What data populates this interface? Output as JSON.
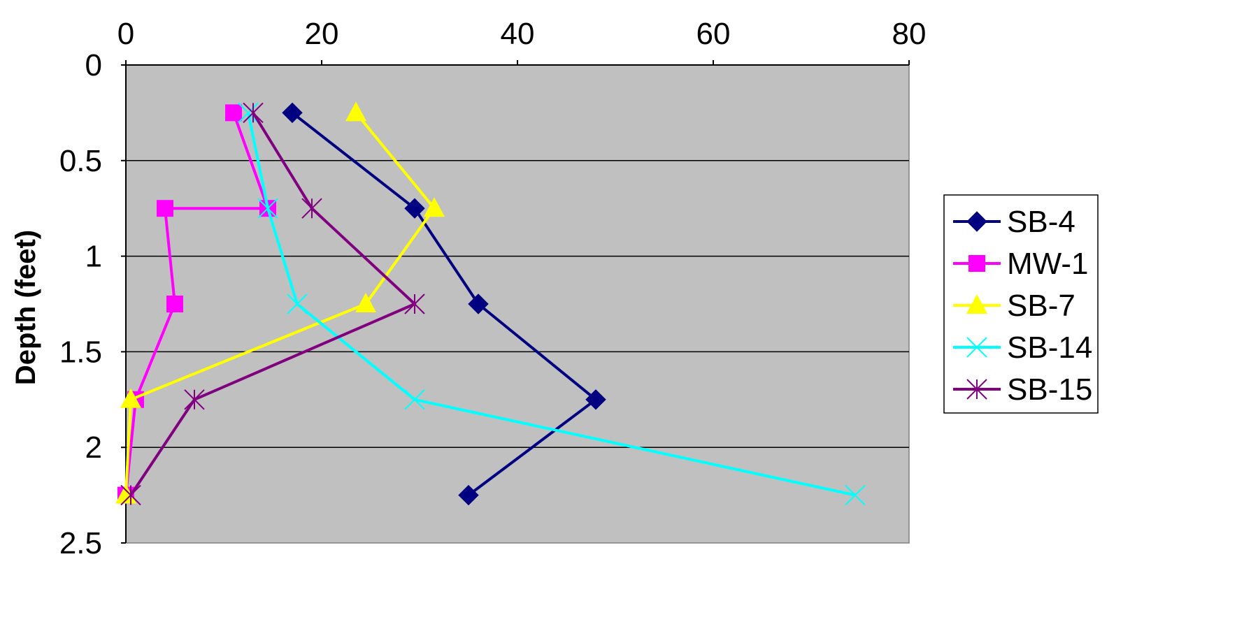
{
  "chart_data": {
    "type": "line",
    "title": "",
    "xlabel": "",
    "ylabel": "Depth (feet)",
    "xlim": [
      0,
      80
    ],
    "ylim": [
      0,
      2.5
    ],
    "y_inverted": true,
    "x_axis_position": "top",
    "x_ticks": [
      "0",
      "20",
      "40",
      "60",
      "80"
    ],
    "y_ticks": [
      "0",
      "0.5",
      "1",
      "1.5",
      "2",
      "2.5"
    ],
    "grid": "horizontal",
    "plot_background": "#c0c0c0",
    "legend_position": "right",
    "series": [
      {
        "name": "SB-4",
        "color": "#000080",
        "marker": "diamond",
        "points": [
          [
            17,
            0.25
          ],
          [
            29.5,
            0.75
          ],
          [
            36,
            1.25
          ],
          [
            48,
            1.75
          ],
          [
            35,
            2.25
          ]
        ]
      },
      {
        "name": "MW-1",
        "color": "#ff00ff",
        "marker": "square",
        "points": [
          [
            11,
            0.25
          ],
          [
            14.5,
            0.75
          ],
          [
            4,
            0.75
          ],
          [
            5,
            1.25
          ],
          [
            1,
            1.75
          ],
          [
            0,
            2.25
          ]
        ]
      },
      {
        "name": "SB-7",
        "color": "#ffff00",
        "marker": "triangle",
        "points": [
          [
            23.5,
            0.25
          ],
          [
            31.5,
            0.75
          ],
          [
            24.5,
            1.25
          ],
          [
            0.5,
            1.75
          ],
          [
            0,
            2.25
          ]
        ]
      },
      {
        "name": "SB-14",
        "color": "#00ffff",
        "marker": "x",
        "points": [
          [
            12.5,
            0.25
          ],
          [
            14.5,
            0.75
          ],
          [
            17.5,
            1.25
          ],
          [
            29.5,
            1.75
          ],
          [
            74.5,
            2.25
          ]
        ]
      },
      {
        "name": "SB-15",
        "color": "#800080",
        "marker": "star",
        "points": [
          [
            13,
            0.25
          ],
          [
            19,
            0.75
          ],
          [
            29.5,
            1.25
          ],
          [
            7,
            1.75
          ],
          [
            0.5,
            2.25
          ]
        ]
      }
    ]
  }
}
